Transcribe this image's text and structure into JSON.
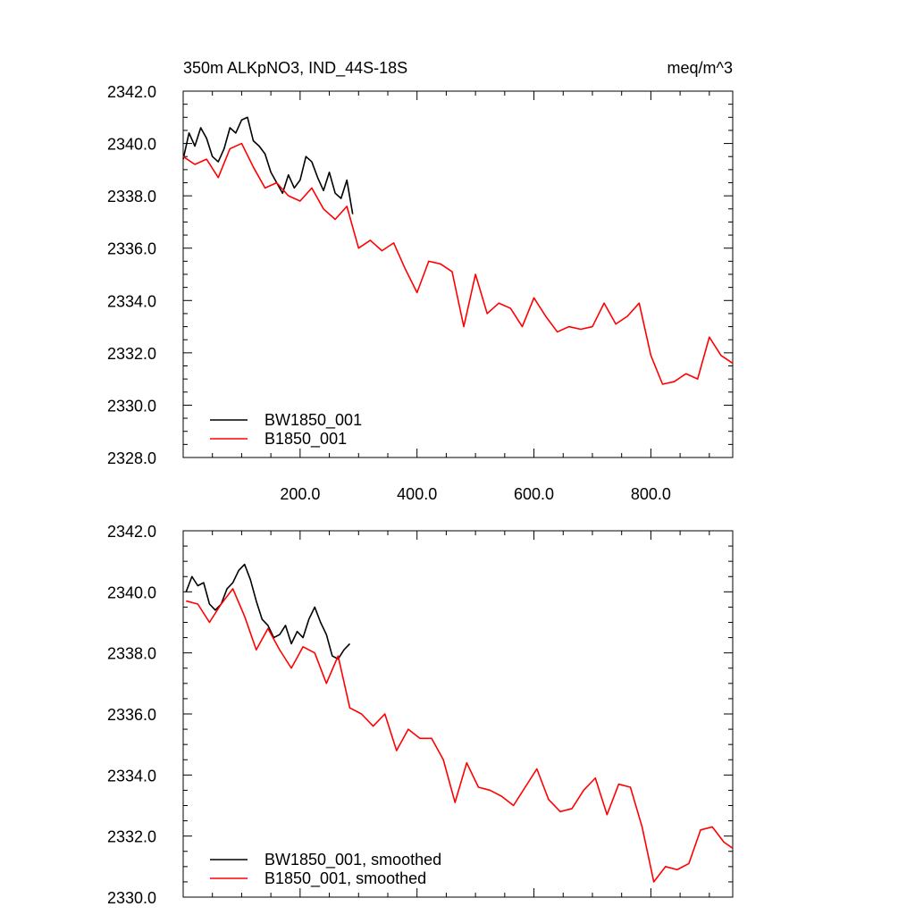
{
  "chart_data": [
    {
      "type": "line",
      "title": "350m ALKpNO3, IND_44S-18S",
      "units": "meq/m^3",
      "xlim": [
        0,
        940
      ],
      "ylim": [
        2328,
        2342
      ],
      "xticks": [
        200,
        400,
        600,
        800
      ],
      "xtick_labels": [
        "200.0",
        "400.0",
        "600.0",
        "800.0"
      ],
      "yticks": [
        2328,
        2330,
        2332,
        2334,
        2336,
        2338,
        2340,
        2342
      ],
      "ytick_labels": [
        "2328.0",
        "2330.0",
        "2332.0",
        "2334.0",
        "2336.0",
        "2338.0",
        "2340.0",
        "2342.0"
      ],
      "legend_position": "bottom-left",
      "series": [
        {
          "name": "BW1850_001",
          "color": "#000000",
          "x": [
            0,
            10,
            20,
            30,
            40,
            50,
            60,
            70,
            80,
            90,
            100,
            110,
            120,
            130,
            140,
            150,
            160,
            170,
            180,
            190,
            200,
            210,
            220,
            230,
            240,
            250,
            260,
            270,
            280,
            290
          ],
          "y": [
            2339.4,
            2340.4,
            2339.9,
            2340.6,
            2340.2,
            2339.5,
            2339.3,
            2339.8,
            2340.6,
            2340.4,
            2340.9,
            2341.0,
            2340.1,
            2339.9,
            2339.6,
            2338.9,
            2338.5,
            2338.1,
            2338.8,
            2338.3,
            2338.6,
            2339.5,
            2339.3,
            2338.7,
            2338.2,
            2338.9,
            2338.1,
            2337.9,
            2338.6,
            2337.3
          ]
        },
        {
          "name": "B1850_001",
          "color": "#ff0000",
          "x": [
            0,
            20,
            40,
            60,
            80,
            100,
            120,
            140,
            160,
            180,
            200,
            220,
            240,
            260,
            280,
            300,
            320,
            340,
            360,
            380,
            400,
            420,
            440,
            460,
            480,
            500,
            520,
            540,
            560,
            580,
            600,
            620,
            640,
            660,
            680,
            700,
            720,
            740,
            760,
            780,
            800,
            820,
            840,
            860,
            880,
            900,
            920,
            940
          ],
          "y": [
            2339.5,
            2339.2,
            2339.4,
            2338.7,
            2339.8,
            2340.0,
            2339.1,
            2338.3,
            2338.5,
            2338.0,
            2337.8,
            2338.3,
            2337.5,
            2337.1,
            2337.6,
            2336.0,
            2336.3,
            2335.9,
            2336.2,
            2335.2,
            2334.3,
            2335.5,
            2335.4,
            2335.1,
            2333.0,
            2335.0,
            2333.5,
            2333.9,
            2333.7,
            2333.0,
            2334.1,
            2333.4,
            2332.8,
            2333.0,
            2332.9,
            2333.0,
            2333.9,
            2333.1,
            2333.4,
            2333.9,
            2331.9,
            2330.8,
            2330.9,
            2331.2,
            2331.0,
            2332.6,
            2331.9,
            2331.6
          ]
        }
      ]
    },
    {
      "type": "line",
      "xlim": [
        0,
        940
      ],
      "ylim": [
        2330,
        2342
      ],
      "xticks": [
        200,
        400,
        600,
        800
      ],
      "yticks": [
        2330,
        2332,
        2334,
        2336,
        2338,
        2340,
        2342
      ],
      "ytick_labels": [
        "2330.0",
        "2332.0",
        "2334.0",
        "2336.0",
        "2338.0",
        "2340.0",
        "2342.0"
      ],
      "legend_position": "bottom-left",
      "series": [
        {
          "name": "BW1850_001, smoothed",
          "color": "#000000",
          "x": [
            5,
            15,
            25,
            35,
            45,
            55,
            65,
            75,
            85,
            95,
            105,
            115,
            125,
            135,
            145,
            155,
            165,
            175,
            185,
            195,
            205,
            215,
            225,
            235,
            245,
            255,
            265,
            275,
            285
          ],
          "y": [
            2340.0,
            2340.5,
            2340.2,
            2340.3,
            2339.6,
            2339.4,
            2339.6,
            2340.1,
            2340.3,
            2340.7,
            2340.9,
            2340.4,
            2339.7,
            2339.1,
            2338.9,
            2338.5,
            2338.6,
            2338.9,
            2338.3,
            2338.7,
            2338.5,
            2339.1,
            2339.5,
            2339.0,
            2338.6,
            2337.9,
            2337.8,
            2338.1,
            2338.3
          ]
        },
        {
          "name": "B1850_001, smoothed",
          "color": "#ff0000",
          "x": [
            5,
            25,
            45,
            65,
            85,
            105,
            125,
            145,
            165,
            185,
            205,
            225,
            245,
            265,
            285,
            305,
            325,
            345,
            365,
            385,
            405,
            425,
            445,
            465,
            485,
            505,
            525,
            545,
            565,
            585,
            605,
            625,
            645,
            665,
            685,
            705,
            725,
            745,
            765,
            785,
            805,
            825,
            845,
            865,
            885,
            905,
            925,
            940
          ],
          "y": [
            2339.7,
            2339.6,
            2339.0,
            2339.6,
            2340.1,
            2339.2,
            2338.1,
            2338.8,
            2338.1,
            2337.5,
            2338.2,
            2338.0,
            2337.0,
            2337.9,
            2336.2,
            2336.0,
            2335.6,
            2336.0,
            2334.8,
            2335.5,
            2335.2,
            2335.2,
            2334.5,
            2333.1,
            2334.4,
            2333.6,
            2333.5,
            2333.3,
            2333.0,
            2333.6,
            2334.2,
            2333.2,
            2332.8,
            2332.9,
            2333.5,
            2333.9,
            2332.7,
            2333.7,
            2333.6,
            2332.3,
            2330.5,
            2331.0,
            2330.9,
            2331.1,
            2332.2,
            2332.3,
            2331.8,
            2331.6
          ]
        }
      ]
    }
  ]
}
